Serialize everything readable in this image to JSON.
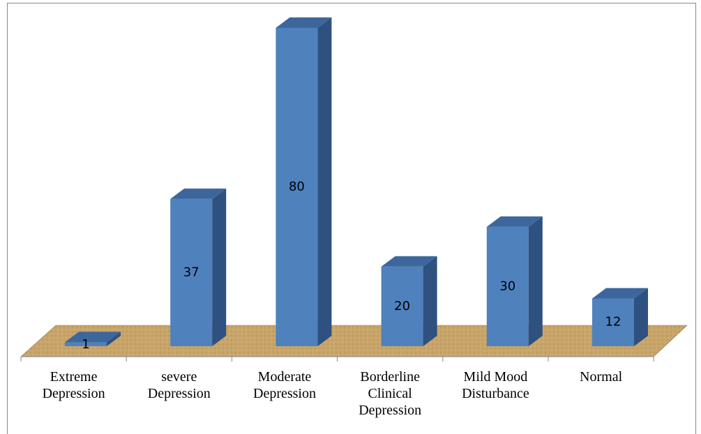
{
  "chart_data": {
    "type": "bar3d",
    "categories": [
      "Extreme Depression",
      "severe Depression",
      "Moderate Depression",
      "Borderline Clinical Depression",
      "Mild Mood Disturbance",
      "Normal"
    ],
    "values": [
      1,
      37,
      80,
      20,
      30,
      12
    ],
    "color": "#4f81bd"
  }
}
